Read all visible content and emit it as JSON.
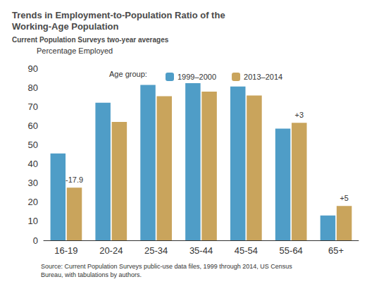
{
  "chart_data": {
    "type": "bar",
    "title": "Trends in Employment-to-Population Ratio of the Working-Age Population",
    "subtitle": "Current Population Surveys two-year averages",
    "y_label": "Percentage Employed",
    "legend_title": "Age group:",
    "source": "Source: Current Population Surveys public-use data files, 1999 through 2014, US Census Bureau, with tabulations by authors.",
    "categories": [
      "16-19",
      "20-24",
      "25-34",
      "35-44",
      "45-54",
      "55-64",
      "65+"
    ],
    "series": [
      {
        "name": "1999–2000",
        "color": "#4f9dc7",
        "values": [
          45.5,
          72,
          81.3,
          82.3,
          80.5,
          58.5,
          13
        ]
      },
      {
        "name": "2013–2014",
        "color": "#c9a45c",
        "values": [
          27.6,
          62,
          75.4,
          77.8,
          75.8,
          61.5,
          18
        ]
      }
    ],
    "annotations": [
      {
        "text": "-17.9",
        "category": "16-19",
        "series": "2013–2014"
      },
      {
        "text": "+3",
        "category": "55-64",
        "series": "2013–2014"
      },
      {
        "text": "+5",
        "category": "65+",
        "series": "2013–2014"
      }
    ],
    "ylim": [
      0,
      90
    ],
    "yticks": [
      0,
      10,
      20,
      30,
      40,
      50,
      60,
      70,
      80,
      90
    ],
    "grid": false,
    "legend": "top"
  }
}
